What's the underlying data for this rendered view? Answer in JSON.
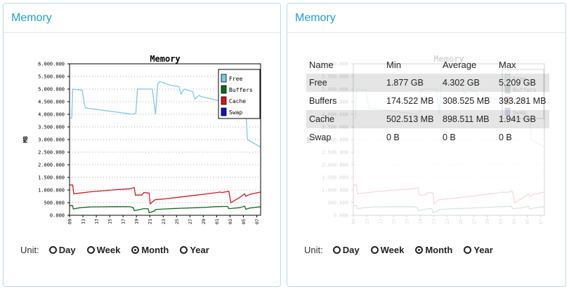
{
  "panels": [
    {
      "title": "Memory"
    },
    {
      "title": "Memory"
    }
  ],
  "chart_data": {
    "type": "line",
    "title": "Memory",
    "ylabel": "MB",
    "ylim": [
      0,
      6000000
    ],
    "yticks": [
      "0.000",
      "500.000",
      "1.000.000",
      "1.500.000",
      "2.000.000",
      "2.500.000",
      "3.000.000",
      "3.500.000",
      "4.000.000",
      "4.500.000",
      "5.000.000",
      "5.500.000",
      "6.000.000"
    ],
    "xticks": [
      "09",
      "11",
      "13",
      "15",
      "17",
      "19",
      "21",
      "23",
      "25",
      "27",
      "29",
      "01",
      "03",
      "05",
      "07"
    ],
    "legend": [
      "Free",
      "Buffers",
      "Cache",
      "Swap"
    ],
    "legend_position": "top-right",
    "grid": true,
    "series": [
      {
        "name": "Free",
        "color": "#7ec8e8",
        "points": [
          [
            0,
            3850000
          ],
          [
            0.2,
            3850000
          ],
          [
            0.3,
            5000000
          ],
          [
            1.2,
            4950000
          ],
          [
            1.4,
            4400000
          ],
          [
            1.5,
            4250000
          ],
          [
            6,
            4000000
          ],
          [
            6.25,
            4050000
          ],
          [
            6.4,
            5000000
          ],
          [
            7.8,
            5000000
          ],
          [
            8.1,
            4000000
          ],
          [
            8.3,
            5200000
          ],
          [
            8.5,
            5300000
          ],
          [
            9.5,
            5150000
          ],
          [
            10.3,
            5100000
          ],
          [
            10.5,
            4800000
          ],
          [
            10.8,
            5000000
          ],
          [
            11.6,
            4900000
          ],
          [
            11.8,
            4600000
          ],
          [
            12.2,
            4750000
          ],
          [
            12.4,
            4700000
          ],
          [
            14,
            4550000
          ],
          [
            14.4,
            4500000
          ],
          [
            15.5,
            4450000
          ],
          [
            15.6,
            4500000
          ],
          [
            16.6,
            4350000
          ],
          [
            16.75,
            3000000
          ],
          [
            18,
            2700000
          ]
        ]
      },
      {
        "name": "Buffers",
        "color": "#0d6b1e",
        "points": [
          [
            0,
            380000
          ],
          [
            0.3,
            380000
          ],
          [
            0.35,
            250000
          ],
          [
            1,
            300000
          ],
          [
            2,
            330000
          ],
          [
            4,
            340000
          ],
          [
            5.7,
            340000
          ],
          [
            6,
            300000
          ],
          [
            6.1,
            180000
          ],
          [
            7,
            260000
          ],
          [
            7.4,
            260000
          ],
          [
            7.5,
            100000
          ],
          [
            8,
            170000
          ],
          [
            8.1,
            230000
          ],
          [
            9,
            250000
          ],
          [
            10,
            270000
          ],
          [
            12,
            300000
          ],
          [
            13,
            320000
          ],
          [
            13.7,
            340000
          ],
          [
            14.9,
            350000
          ],
          [
            15,
            260000
          ],
          [
            16,
            300000
          ],
          [
            16.5,
            360000
          ],
          [
            16.6,
            240000
          ],
          [
            17,
            290000
          ],
          [
            18,
            340000
          ]
        ]
      },
      {
        "name": "Cache",
        "color": "#d8151f",
        "points": [
          [
            0,
            1200000
          ],
          [
            0.3,
            1200000
          ],
          [
            0.4,
            850000
          ],
          [
            1,
            880000
          ],
          [
            2,
            930000
          ],
          [
            4,
            1000000
          ],
          [
            5.7,
            1050000
          ],
          [
            6.1,
            1100000
          ],
          [
            6.2,
            800000
          ],
          [
            6.8,
            800000
          ],
          [
            7,
            900000
          ],
          [
            7.5,
            880000
          ],
          [
            7.6,
            450000
          ],
          [
            8,
            600000
          ],
          [
            8.1,
            620000
          ],
          [
            9,
            650000
          ],
          [
            10,
            700000
          ],
          [
            12,
            800000
          ],
          [
            13,
            850000
          ],
          [
            14.2,
            920000
          ],
          [
            14.35,
            900000
          ],
          [
            15,
            950000
          ],
          [
            15.2,
            500000
          ],
          [
            16,
            700000
          ],
          [
            16.5,
            850000
          ],
          [
            16.6,
            750000
          ],
          [
            17,
            830000
          ],
          [
            18,
            920000
          ]
        ]
      },
      {
        "name": "Swap",
        "color": "#1010c8",
        "points": []
      }
    ]
  },
  "stats": {
    "headers": [
      "Name",
      "Min",
      "Average",
      "Max"
    ],
    "rows": [
      [
        "Free",
        "1.877 GB",
        "4.302 GB",
        "5.209 GB"
      ],
      [
        "Buffers",
        "174.522 MB",
        "308.525 MB",
        "393.281 MB"
      ],
      [
        "Cache",
        "502.513 MB",
        "898.511 MB",
        "1.941 GB"
      ],
      [
        "Swap",
        "0 B",
        "0 B",
        "0 B"
      ]
    ]
  },
  "unit": {
    "label": "Unit:",
    "options": [
      "Day",
      "Week",
      "Month",
      "Year"
    ],
    "selected": "Month"
  }
}
